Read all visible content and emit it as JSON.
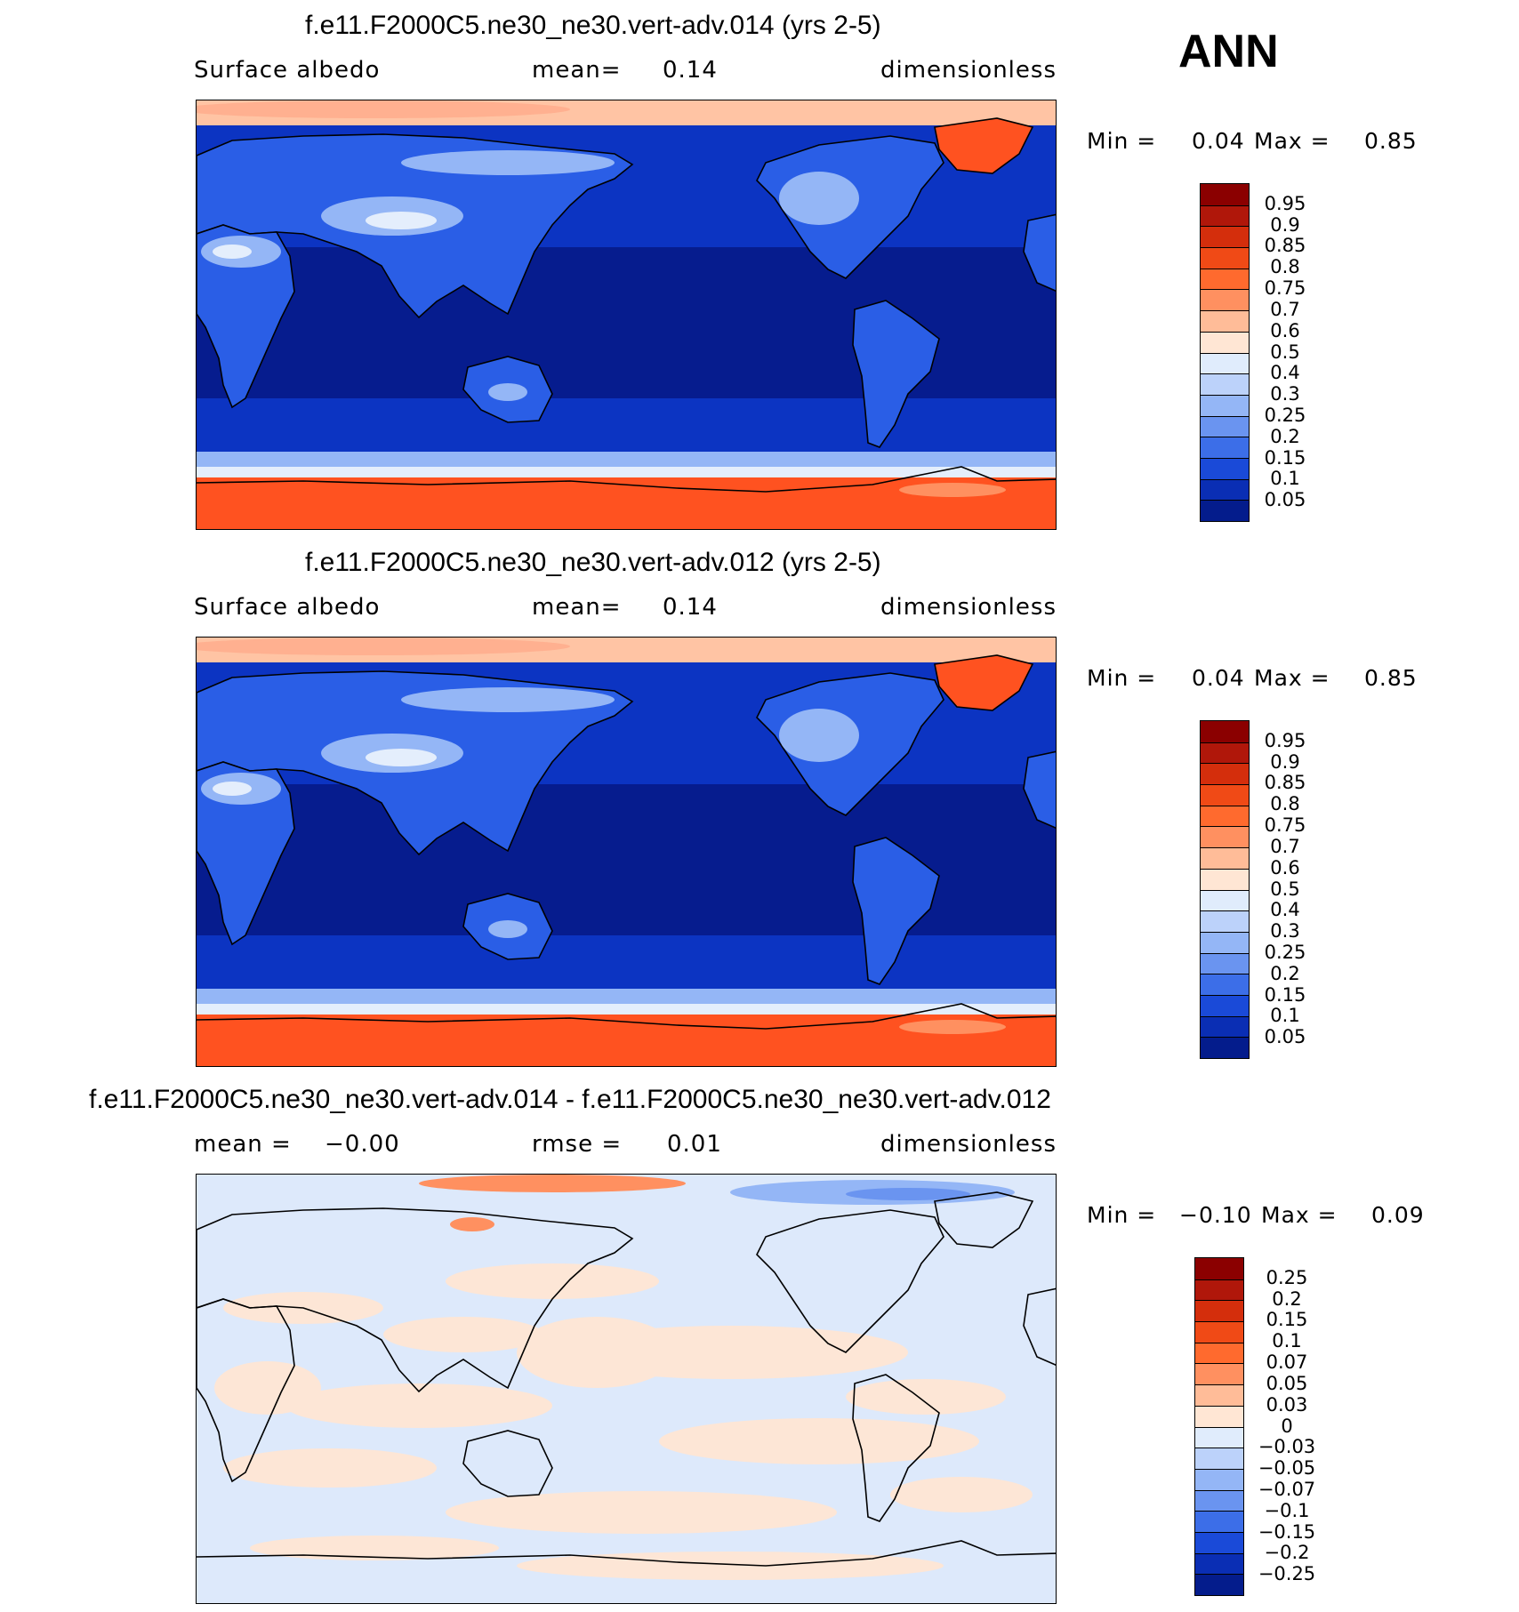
{
  "season": "ANN",
  "panels": [
    {
      "title": "f.e11.F2000C5.ne30_ne30.vert-adv.014 (yrs 2-5)",
      "variable": "Surface albedo",
      "mean_label": "mean=",
      "mean_value": "0.14",
      "units": "dimensionless",
      "min_label": "Min =",
      "min_value": "0.04",
      "max_label": "Max =",
      "max_value": "0.85"
    },
    {
      "title": "f.e11.F2000C5.ne30_ne30.vert-adv.012 (yrs 2-5)",
      "variable": "Surface albedo",
      "mean_label": "mean=",
      "mean_value": "0.14",
      "units": "dimensionless",
      "min_label": "Min =",
      "min_value": "0.04",
      "max_label": "Max =",
      "max_value": "0.85"
    },
    {
      "title": "f.e11.F2000C5.ne30_ne30.vert-adv.014 - f.e11.F2000C5.ne30_ne30.vert-adv.012",
      "mean_label": "mean =",
      "mean_value": "−0.00",
      "rmse_label": "rmse =",
      "rmse_value": "0.01",
      "units": "dimensionless",
      "min_label": "Min =",
      "min_value": "−0.10",
      "max_label": "Max =",
      "max_value": "0.09"
    }
  ],
  "colorbar_abs": {
    "labels": [
      "0.95",
      "0.9",
      "0.85",
      "0.8",
      "0.75",
      "0.7",
      "0.6",
      "0.5",
      "0.4",
      "0.3",
      "0.25",
      "0.2",
      "0.15",
      "0.1",
      "0.05"
    ],
    "colors": [
      "#8b0000",
      "#b0170a",
      "#d42e0c",
      "#f04a16",
      "#ff6a2e",
      "#ff9060",
      "#ffbc98",
      "#ffe6d4",
      "#e0ecfc",
      "#bcd2fa",
      "#94b6f6",
      "#6a94f0",
      "#3c6ee8",
      "#1a4ad8",
      "#0a2eb4",
      "#041c8c"
    ]
  },
  "colorbar_diff": {
    "labels": [
      "0.25",
      "0.2",
      "0.15",
      "0.1",
      "0.07",
      "0.05",
      "0.03",
      "0",
      "−0.03",
      "−0.05",
      "−0.07",
      "−0.1",
      "−0.15",
      "−0.2",
      "−0.25"
    ],
    "colors": [
      "#8b0000",
      "#b0170a",
      "#d42e0c",
      "#f04a16",
      "#ff6a2e",
      "#ff9060",
      "#ffbc98",
      "#ffe6d4",
      "#e0ecfc",
      "#bcd2fa",
      "#94b6f6",
      "#6a94f0",
      "#3c6ee8",
      "#1a4ad8",
      "#0a2eb4",
      "#041c8c"
    ]
  },
  "map_colors": {
    "polar_red": "#ff5220",
    "ice_light": "#ffc4a4",
    "ocean_deep": "#061c8e",
    "ocean_mid": "#0c34c2",
    "land_blue": "#2a5ee6",
    "land_light": "#94b6f6",
    "snow_white": "#e4eefc",
    "diff_pos": "#fde6d6",
    "diff_neg": "#dde9fb",
    "coast": "#000000"
  }
}
